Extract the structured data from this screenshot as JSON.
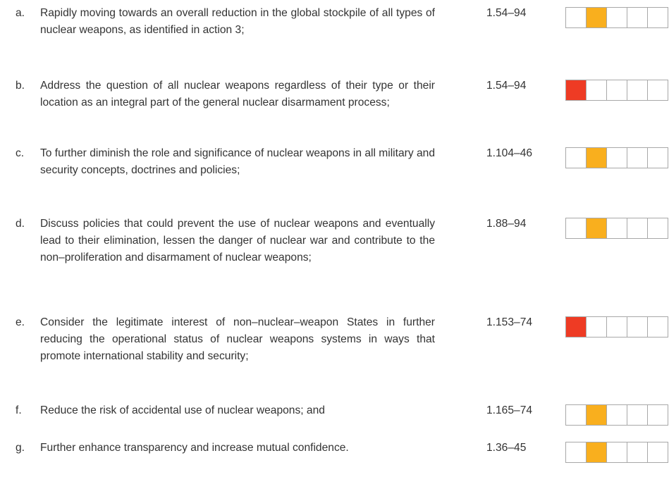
{
  "items": [
    {
      "letter": "a.",
      "text": "Rapidly moving towards an overall reduction in the global stockpile of all types of nuclear weapons, as identified in action 3;",
      "reference": "1.54–94",
      "status": {
        "filled": 1,
        "color": "#f9af1e"
      }
    },
    {
      "letter": "b.",
      "text": "Address the question of all nuclear weapons regardless of their type or their location as an integral part of the general nuclear disarmament process;",
      "reference": "1.54–94",
      "status": {
        "filled": 0,
        "color": "#ee3b24"
      }
    },
    {
      "letter": "c.",
      "text": "To further diminish the role and significance of nuclear weapons in all military and security concepts, doctrines and policies;",
      "reference": "1.104–46",
      "status": {
        "filled": 1,
        "color": "#f9af1e"
      }
    },
    {
      "letter": "d.",
      "text": "Discuss policies that could prevent the use of nuclear weapons and eventually lead to their elimination, lessen the danger of nuclear war and contribute to the non–proliferation and disarmament of nuclear weapons;",
      "reference": "1.88–94",
      "status": {
        "filled": 1,
        "color": "#f9af1e"
      }
    },
    {
      "letter": "e.",
      "text": "Consider the legitimate interest of non–nuclear–weapon States in further reducing the operational status of nuclear weapons systems in ways that promote international stability and security;",
      "reference": "1.153–74",
      "status": {
        "filled": 0,
        "color": "#ee3b24"
      }
    },
    {
      "letter": "f.",
      "text": "Reduce the risk of accidental use of nuclear weapons; and",
      "reference": "1.165–74",
      "status": {
        "filled": 1,
        "color": "#f9af1e"
      }
    },
    {
      "letter": "g.",
      "text": "Further enhance transparency and increase mutual confidence.",
      "reference": "1.36–45",
      "status": {
        "filled": 1,
        "color": "#f9af1e"
      }
    }
  ]
}
